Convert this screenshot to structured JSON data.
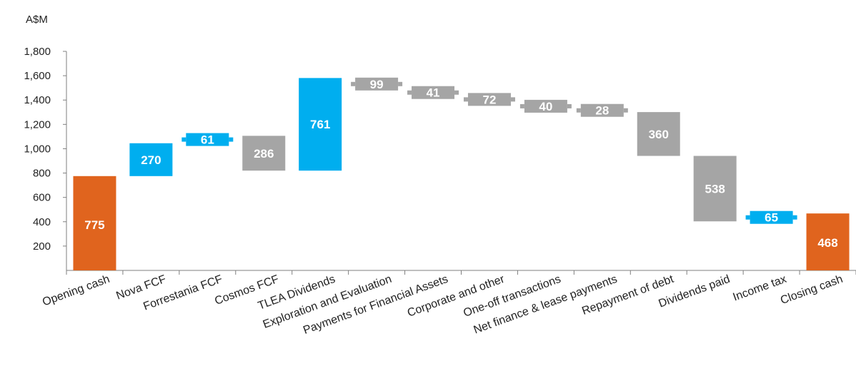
{
  "chart_data": {
    "type": "waterfall",
    "unit_label": "A$M",
    "ylim": [
      0,
      1800
    ],
    "y_ticks": [
      "200",
      "400",
      "600",
      "800",
      "1,000",
      "1,200",
      "1,400",
      "1,600",
      "1,800"
    ],
    "y_tick_values": [
      200,
      400,
      600,
      800,
      1000,
      1200,
      1400,
      1600,
      1800
    ],
    "bars": [
      {
        "label": "Opening cash",
        "value_label": "775",
        "start": 0,
        "end": 775,
        "color": "#E0641E"
      },
      {
        "label": "Nova FCF",
        "value_label": "270",
        "start": 775,
        "end": 1045,
        "color": "#00AEEF"
      },
      {
        "label": "Forrestania FCF",
        "value_label": "61",
        "start": 1045,
        "end": 1106,
        "color": "#00AEEF"
      },
      {
        "label": "Cosmos FCF",
        "value_label": "286",
        "start": 1106,
        "end": 820,
        "color": "#A5A5A5"
      },
      {
        "label": "TLEA Dividends",
        "value_label": "761",
        "start": 820,
        "end": 1581,
        "color": "#00AEEF"
      },
      {
        "label": "Exploration and Evaluation",
        "value_label": "99",
        "start": 1581,
        "end": 1482,
        "color": "#A5A5A5"
      },
      {
        "label": "Payments for Financial Assets",
        "value_label": "41",
        "start": 1482,
        "end": 1441,
        "color": "#A5A5A5"
      },
      {
        "label": "Corporate and other",
        "value_label": "72",
        "start": 1441,
        "end": 1369,
        "color": "#A5A5A5"
      },
      {
        "label": "One-off transactions",
        "value_label": "40",
        "start": 1369,
        "end": 1329,
        "color": "#A5A5A5"
      },
      {
        "label": "Net finance & lease payments",
        "value_label": "28",
        "start": 1329,
        "end": 1301,
        "color": "#A5A5A5"
      },
      {
        "label": "Repayment of debt",
        "value_label": "360",
        "start": 1301,
        "end": 941,
        "color": "#A5A5A5"
      },
      {
        "label": "Dividends paid",
        "value_label": "538",
        "start": 941,
        "end": 403,
        "color": "#A5A5A5"
      },
      {
        "label": "Income tax",
        "value_label": "65",
        "start": 403,
        "end": 468,
        "color": "#00AEEF"
      },
      {
        "label": "Closing cash",
        "value_label": "468",
        "start": 0,
        "end": 468,
        "color": "#E0641E"
      }
    ]
  }
}
